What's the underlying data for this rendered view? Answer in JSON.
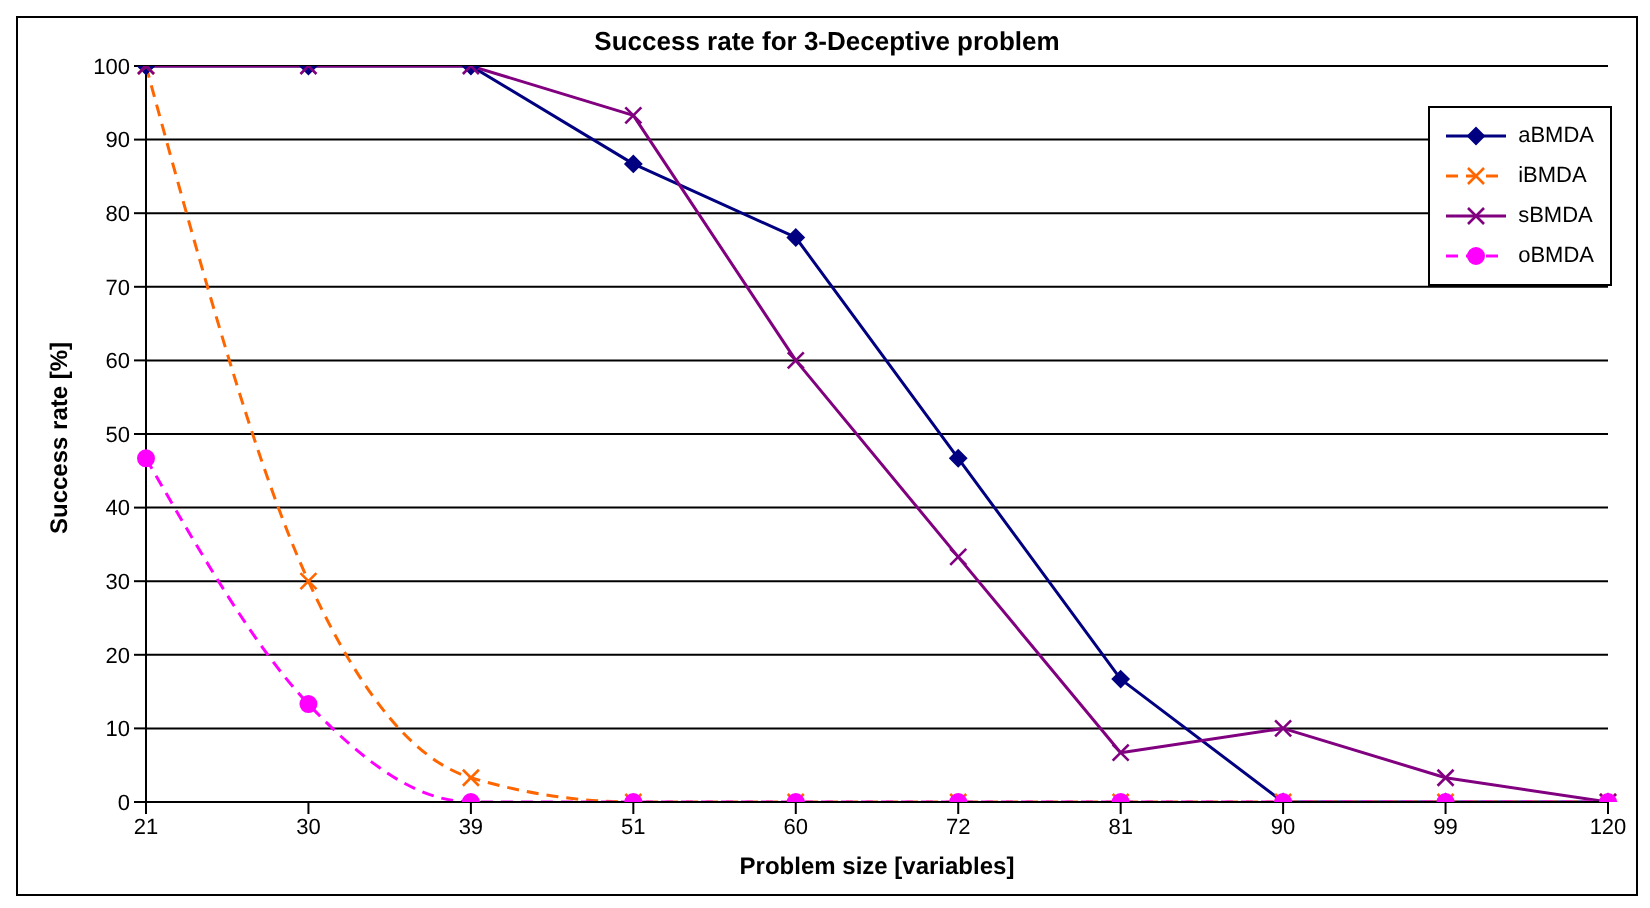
{
  "chart_data": {
    "type": "line",
    "title": "Success rate for 3-Deceptive problem",
    "xlabel": "Problem size [variables]",
    "ylabel": "Success rate [%]",
    "categories": [
      "21",
      "30",
      "39",
      "51",
      "60",
      "72",
      "81",
      "90",
      "99",
      "120"
    ],
    "series": [
      {
        "name": "aBMDA",
        "color": "#000080",
        "marker": "diamond",
        "line_style": "solid",
        "values": [
          100,
          100,
          100,
          86.7,
          76.7,
          46.7,
          16.7,
          0,
          0,
          0
        ]
      },
      {
        "name": "iBMDA",
        "color": "#ff6600",
        "marker": "cross",
        "line_style": "dashed",
        "values": [
          100,
          30,
          3.3,
          0,
          0,
          0,
          0,
          0,
          0,
          0
        ]
      },
      {
        "name": "sBMDA",
        "color": "#800080",
        "marker": "cross",
        "line_style": "solid",
        "values": [
          100,
          100,
          100,
          93.3,
          60,
          33.3,
          6.7,
          10,
          3.3,
          0
        ]
      },
      {
        "name": "oBMDA",
        "color": "#ff00ff",
        "marker": "circle",
        "line_style": "dashed",
        "values": [
          46.7,
          13.3,
          0,
          0,
          0,
          0,
          0,
          0,
          0,
          0
        ]
      }
    ],
    "ylim": [
      0,
      100
    ],
    "yticks": [
      0,
      10,
      20,
      30,
      40,
      50,
      60,
      70,
      80,
      90,
      100
    ],
    "grid": "y",
    "legend": "top right"
  }
}
